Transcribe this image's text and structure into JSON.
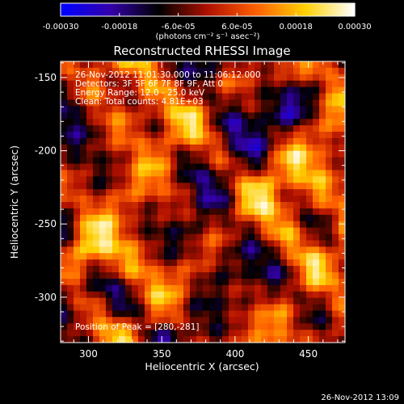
{
  "chart_data": {
    "type": "heatmap",
    "title": "Reconstructed RHESSI Image",
    "xlabel": "Heliocentric X (arcsec)",
    "ylabel": "Heliocentric Y (arcsec)",
    "xlim": [
      281,
      475
    ],
    "ylim": [
      -331,
      -139
    ],
    "x_ticks": [
      "300",
      "350",
      "400",
      "450"
    ],
    "x_tick_values": [
      300,
      350,
      400,
      450
    ],
    "y_ticks": [
      "-150",
      "-200",
      "-250",
      "-300"
    ],
    "y_tick_values": [
      -150,
      -200,
      -250,
      -300
    ],
    "colorbar": {
      "range": [
        -0.0003,
        0.0003
      ],
      "ticks": [
        "-0.00030",
        "-0.00018",
        "-6.0e-05",
        "6.0e-05",
        "0.00018",
        "0.00030"
      ],
      "tick_values": [
        -0.0003,
        -0.00018,
        -6e-05,
        6e-05,
        0.00018,
        0.0003
      ],
      "unit_label": "(photons cm⁻² s⁻¹ asec⁻²)",
      "colormap": [
        "#0000ff",
        "#3300aa",
        "#000000",
        "#b01000",
        "#ff6000",
        "#ffd000",
        "#ffffff"
      ]
    },
    "annotations": [
      "26-Nov-2012 11:01:30.000 to 11:06:12.000",
      "Detectors: 3F 5F 6F 7F 8F 9F, Att 0",
      "Energy Range: 12.0 - 25.0 keV",
      "Clean: Total counts: 4.81E+03"
    ],
    "peak_label": "Position of Peak = [280,-281]",
    "peak": [
      280,
      -281
    ],
    "grid_cells": [
      44,
      44
    ],
    "timestamp": "26-Nov-2012 13:09"
  }
}
